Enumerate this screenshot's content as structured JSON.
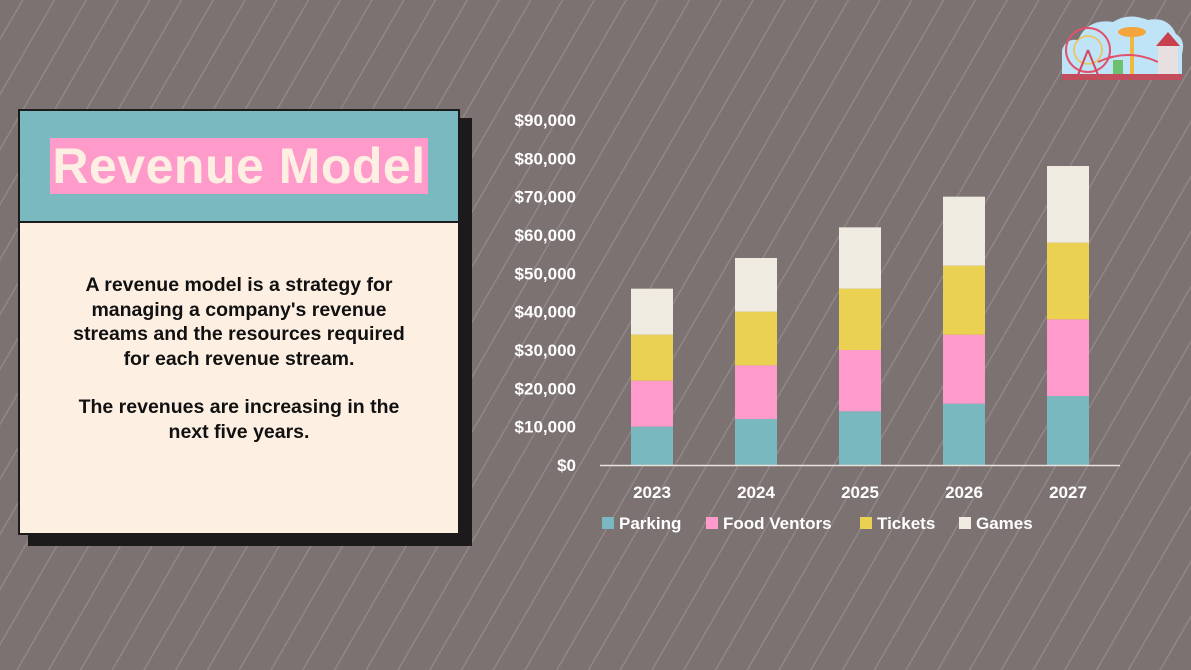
{
  "slide": {
    "title": "Revenue Model",
    "paragraphs": [
      "A revenue model is a strategy for managing a company's revenue streams and the resources required for each revenue stream.",
      "The revenues are increasing in the next five years."
    ],
    "illustration": "amusement-park-illustration"
  },
  "chart_data": {
    "type": "bar",
    "stacked": true,
    "title": "",
    "xlabel": "",
    "ylabel": "",
    "categories": [
      "2023",
      "2024",
      "2025",
      "2026",
      "2027"
    ],
    "ylim": [
      0,
      90000
    ],
    "yticks": [
      0,
      10000,
      20000,
      30000,
      40000,
      50000,
      60000,
      70000,
      80000,
      90000
    ],
    "ytick_labels": [
      "$0",
      "$10,000",
      "$20,000",
      "$30,000",
      "$40,000",
      "$50,000",
      "$60,000",
      "$70,000",
      "$80,000",
      "$90,000"
    ],
    "grid": false,
    "legend": "bottom",
    "series": [
      {
        "name": "Parking",
        "color": "#78b8be",
        "values": [
          10000,
          12000,
          14000,
          16000,
          18000
        ]
      },
      {
        "name": "Food Ventors",
        "color": "#ff9bcb",
        "values": [
          12000,
          14000,
          16000,
          18000,
          20000
        ]
      },
      {
        "name": "Tickets",
        "color": "#ead152",
        "values": [
          12000,
          14000,
          16000,
          18000,
          20000
        ]
      },
      {
        "name": "Games",
        "color": "#efebe1",
        "values": [
          12000,
          14000,
          16000,
          18000,
          20000
        ]
      }
    ]
  }
}
